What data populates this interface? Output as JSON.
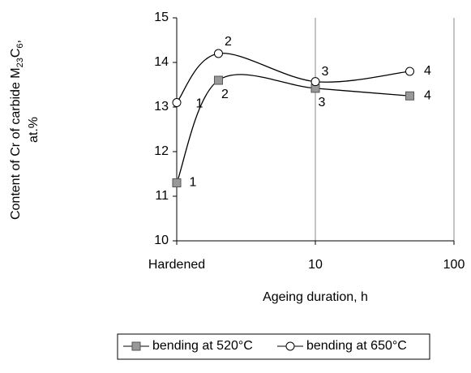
{
  "chart_data": {
    "type": "line",
    "y_label_parts": [
      "Content of Cr of carbide M",
      "23",
      "C",
      "6",
      ","
    ],
    "y_label_line2": "at.%",
    "x_label": "Ageing duration, h",
    "x_scale": "log",
    "xlim": [
      1,
      100
    ],
    "xticks": [
      {
        "value": 1,
        "label": "Hardened"
      },
      10,
      100
    ],
    "ylim": [
      10,
      15
    ],
    "yticks": [
      10,
      11,
      12,
      13,
      14,
      15
    ],
    "x_grid": true,
    "legend": "bottom",
    "series": [
      {
        "name": "bending at 520°C",
        "marker": "square",
        "color": "#999999",
        "x": [
          1,
          2,
          10,
          48
        ],
        "values": [
          11.3,
          13.6,
          13.42,
          13.25
        ],
        "point_labels": [
          "1",
          "2",
          "3",
          "4"
        ]
      },
      {
        "name": "bending at 650°C",
        "marker": "circle",
        "color": "#ffffff",
        "x": [
          1,
          2,
          10,
          48
        ],
        "values": [
          13.1,
          14.2,
          13.57,
          13.8
        ],
        "point_labels": [
          "1",
          "2",
          "3",
          "4"
        ]
      }
    ]
  }
}
